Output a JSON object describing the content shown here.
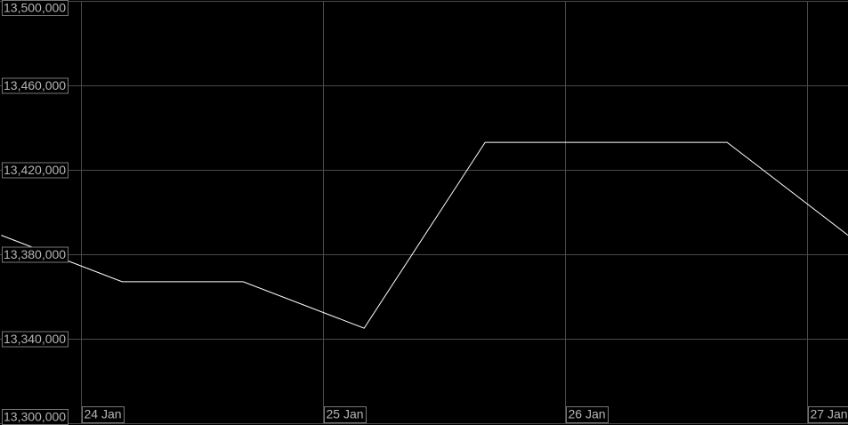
{
  "chart_data": {
    "type": "line",
    "x": [
      -0.33,
      0.17,
      0.67,
      1.17,
      1.67,
      2.17,
      2.67,
      3.17
    ],
    "series": [
      {
        "color": "#ffffff",
        "values": [
          13389000,
          13367000,
          13367000,
          13345000,
          13433000,
          13433000,
          13433000,
          13389000
        ]
      }
    ],
    "xlim": [
      -0.335,
      3.17
    ],
    "xticks": [
      {
        "value": 0,
        "label": "24 Jan"
      },
      {
        "value": 1,
        "label": "25 Jan"
      },
      {
        "value": 2,
        "label": "26 Jan"
      },
      {
        "value": 3,
        "label": "27 Jan"
      }
    ],
    "ylim": [
      13300000,
      13500000
    ],
    "yticks": [
      {
        "value": 13300000,
        "label": "13,300,000"
      },
      {
        "value": 13340000,
        "label": "13,340,000"
      },
      {
        "value": 13380000,
        "label": "13,380,000"
      },
      {
        "value": 13420000,
        "label": "13,420,000"
      },
      {
        "value": 13460000,
        "label": "13,460,000"
      },
      {
        "value": 13500000,
        "label": "13,500,000"
      }
    ],
    "grid": true
  }
}
